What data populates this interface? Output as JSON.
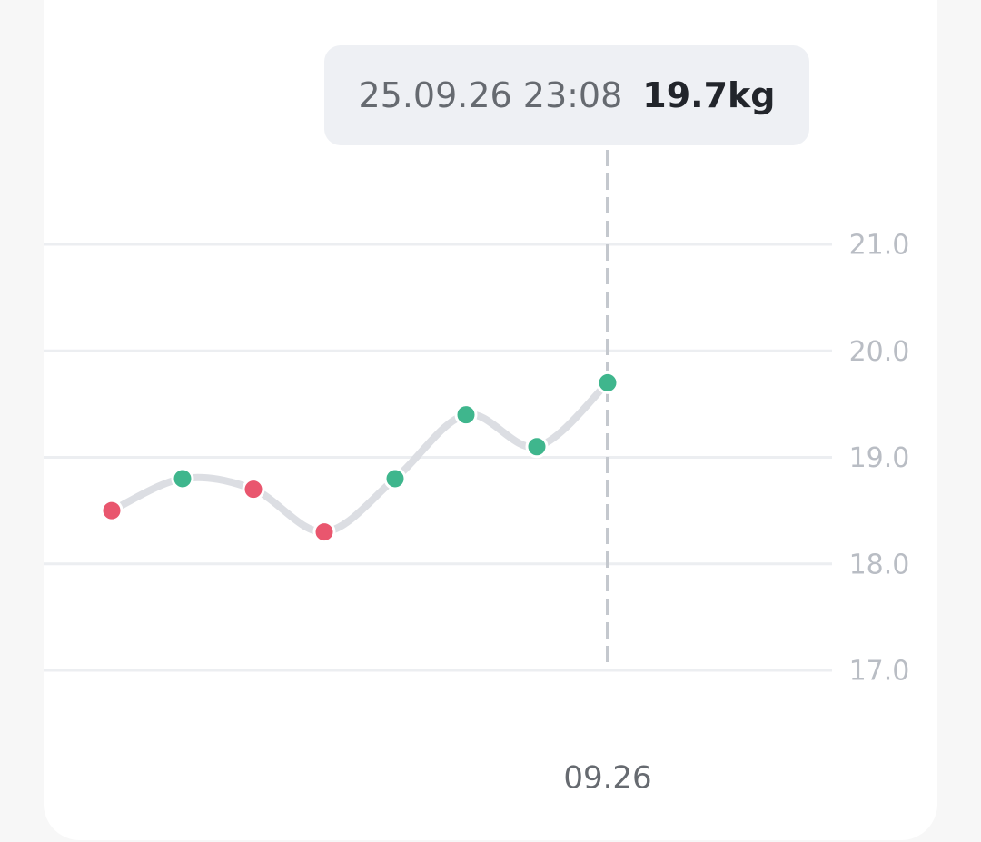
{
  "chart_data": {
    "type": "line",
    "categories": [
      null,
      null,
      null,
      null,
      null,
      null,
      null,
      "09.26"
    ],
    "values": [
      18.5,
      18.8,
      18.7,
      18.3,
      18.8,
      19.4,
      19.1,
      19.7
    ],
    "value_labels": [
      null,
      null,
      null,
      null,
      null,
      null,
      null,
      "19.7kg"
    ],
    "tooltip_title": "25.09.26 23:08",
    "point_colors": [
      "#e9566e",
      "#3fb68d",
      "#e9566e",
      "#e9566e",
      "#3fb68d",
      "#3fb68d",
      "#3fb68d",
      "#3fb68d"
    ],
    "line_color": "#dcdee3",
    "ylim": [
      17,
      21
    ],
    "yticks": [
      {
        "value": 17,
        "label": "17.0"
      },
      {
        "value": 18,
        "label": "18.0"
      },
      {
        "value": 19,
        "label": "19.0"
      },
      {
        "value": 20,
        "label": "20.0"
      },
      {
        "value": 21,
        "label": "21.0"
      }
    ],
    "grid": true
  }
}
